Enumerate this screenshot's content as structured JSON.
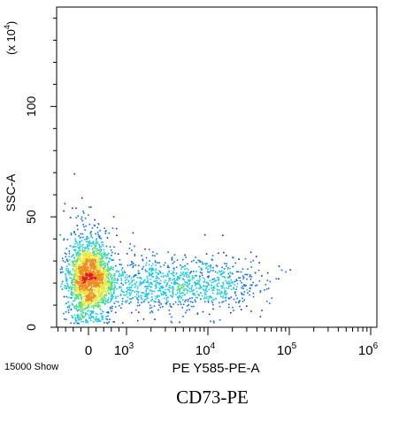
{
  "chart_data": {
    "type": "scatter",
    "title": "",
    "xlabel": "PE Y585-PE-A",
    "ylabel": "SSC-A",
    "y_multiplier": "(x 10",
    "y_multiplier_exp": "4",
    "y_multiplier_close": ")",
    "footer_left": "15000 Show",
    "caption": "CD73-PE",
    "ylim": [
      0,
      145
    ],
    "y_ticks": [
      {
        "value": 0,
        "label": "0"
      },
      {
        "value": 50,
        "label": "50"
      },
      {
        "value": 100,
        "label": "100"
      }
    ],
    "x_scale": "biexponential",
    "x_ticks": [
      {
        "value": 0,
        "base": "0",
        "exp": ""
      },
      {
        "value": 1000,
        "base": "10",
        "exp": "3"
      },
      {
        "value": 10000,
        "base": "10",
        "exp": "4"
      },
      {
        "value": 100000,
        "base": "10",
        "exp": "5"
      },
      {
        "value": 1000000,
        "base": "10",
        "exp": "6"
      }
    ],
    "events_shown": 15000,
    "populations": [
      {
        "name": "",
        "x_center": 0,
        "y_center": 23,
        "x_spread": 300,
        "y_spread": 9,
        "weight": 0.62
      },
      {
        "name": "",
        "x_center": 2500,
        "y_center": 20,
        "x_spread_log": 0.55,
        "y_spread": 6,
        "weight": 0.3
      },
      {
        "name": "",
        "x_center": 12000,
        "y_center": 19,
        "x_spread_log": 0.35,
        "y_spread": 5,
        "weight": 0.08
      }
    ],
    "colormap": [
      "#1f1fd8",
      "#0b6cf0",
      "#14c8e6",
      "#4fe07a",
      "#e8e82a",
      "#f08c1e",
      "#e21b1b"
    ],
    "grid": false,
    "legend": "none"
  }
}
